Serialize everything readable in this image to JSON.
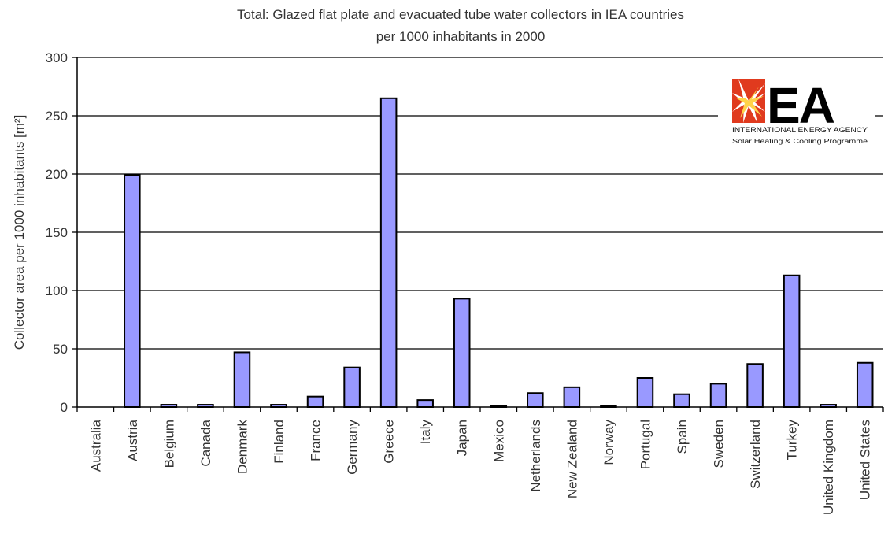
{
  "chart_data": {
    "type": "bar",
    "title": "Total: Glazed flat plate and evacuated tube water collectors in IEA countries",
    "subtitle": "per 1000 inhabitants in 2000",
    "xlabel": "",
    "ylabel": "Collector area per 1000 inhabitants [m²]",
    "ylim": [
      0,
      300
    ],
    "yticks": [
      0,
      50,
      100,
      150,
      200,
      250,
      300
    ],
    "grid": true,
    "bar_color": "#9999ff",
    "categories": [
      "Australia",
      "Austria",
      "Belgium",
      "Canada",
      "Denmark",
      "Finland",
      "France",
      "Germany",
      "Greece",
      "Italy",
      "Japan",
      "Mexico",
      "Netherlands",
      "New Zealand",
      "Norway",
      "Portugal",
      "Spain",
      "Sweden",
      "Switzerland",
      "Turkey",
      "United Kingdom",
      "United States"
    ],
    "values": [
      0,
      199,
      2,
      2,
      47,
      2,
      9,
      34,
      265,
      6,
      93,
      1,
      12,
      17,
      1,
      25,
      11,
      20,
      37,
      113,
      2,
      38
    ]
  },
  "logo": {
    "text": "EA",
    "line1": "INTERNATIONAL ENERGY AGENCY",
    "line2": "Solar Heating & Cooling Programme",
    "accent": "#e03a1e"
  }
}
